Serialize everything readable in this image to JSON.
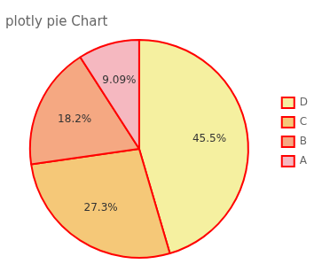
{
  "chart_data": {
    "type": "pie",
    "title": "plotly pie Chart",
    "categories": [
      "D",
      "C",
      "B",
      "A"
    ],
    "values": [
      45.5,
      27.3,
      18.2,
      9.09
    ],
    "value_labels": [
      "45.5%",
      "27.3%",
      "18.2%",
      "9.09%"
    ],
    "colors": [
      "#f5f0a0",
      "#f5c878",
      "#f5a882",
      "#f5b8c0"
    ],
    "data_labels": true,
    "legend": "right"
  }
}
